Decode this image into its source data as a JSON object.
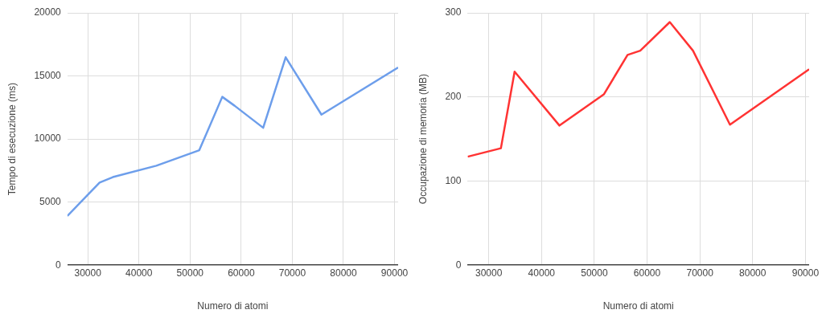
{
  "chart_data": [
    {
      "type": "line",
      "xlabel": "Numero di atomi",
      "ylabel": "Tempo di esecuzione (ms)",
      "xlim": [
        26000,
        90700
      ],
      "xticks": [
        30000,
        40000,
        50000,
        60000,
        70000,
        80000,
        90000
      ],
      "ylim": [
        0,
        20000
      ],
      "yticks": [
        0,
        5000,
        10000,
        15000,
        20000
      ],
      "grid": true,
      "legend": false,
      "x": [
        26000,
        32300,
        34900,
        43400,
        51800,
        56300,
        58700,
        64300,
        68700,
        75700,
        90700
      ],
      "series": [
        {
          "color": "#6d9eeb",
          "values": [
            3900,
            6550,
            6980,
            7880,
            9110,
            13340,
            12640,
            10890,
            16480,
            11930,
            15670
          ]
        }
      ]
    },
    {
      "type": "line",
      "xlabel": "Numero di atomi",
      "ylabel": "Occupazione di memoria (MB)",
      "xlim": [
        26000,
        90700
      ],
      "xticks": [
        30000,
        40000,
        50000,
        60000,
        70000,
        80000,
        90000
      ],
      "ylim": [
        0,
        300
      ],
      "yticks": [
        0,
        100,
        200,
        300
      ],
      "grid": true,
      "legend": false,
      "x": [
        26000,
        32300,
        34900,
        43400,
        51800,
        56300,
        58700,
        64300,
        68700,
        75700,
        90700
      ],
      "series": [
        {
          "color": "#ff3333",
          "values": [
            129,
            139,
            230,
            166,
            203,
            250,
            255,
            289,
            255,
            167,
            233
          ]
        }
      ]
    }
  ]
}
